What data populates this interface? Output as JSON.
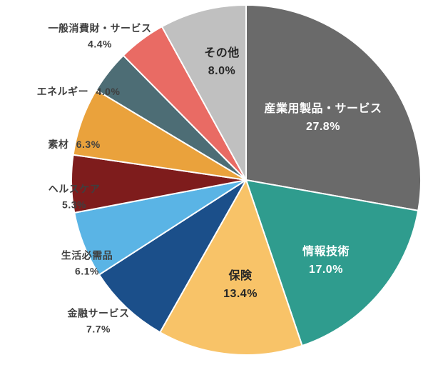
{
  "chart_data": {
    "type": "pie",
    "title": "",
    "unit": "%",
    "direction": "clockwise",
    "start_angle_deg": 0,
    "legend": "none",
    "slices": [
      {
        "id": "industrial-products-services",
        "label": "産業用製品・サービス",
        "value": 27.8,
        "pct": "27.8%",
        "color": "#6a6a6a",
        "label_placement": "inside"
      },
      {
        "id": "information-technology",
        "label": "情報技術",
        "value": 17.0,
        "pct": "17.0%",
        "color": "#2f9c8e",
        "label_placement": "inside"
      },
      {
        "id": "insurance",
        "label": "保険",
        "value": 13.4,
        "pct": "13.4%",
        "color": "#f8c368",
        "label_placement": "inside"
      },
      {
        "id": "financial-services",
        "label": "金融サービス",
        "value": 7.7,
        "pct": "7.7%",
        "color": "#1b4f8a",
        "label_placement": "outside"
      },
      {
        "id": "consumer-staples",
        "label": "生活必需品",
        "value": 6.1,
        "pct": "6.1%",
        "color": "#5ab4e5",
        "label_placement": "outside"
      },
      {
        "id": "healthcare",
        "label": "ヘルスケア",
        "value": 5.3,
        "pct": "5.3%",
        "color": "#7e1c1c",
        "label_placement": "outside"
      },
      {
        "id": "materials",
        "label": "素材",
        "value": 6.3,
        "pct": "6.3%",
        "color": "#eaa23c",
        "label_placement": "outside"
      },
      {
        "id": "energy",
        "label": "エネルギー",
        "value": 4.0,
        "pct": "4.0%",
        "color": "#4d6d75",
        "label_placement": "outside"
      },
      {
        "id": "consumer-discretionary",
        "label": "一般消費財・サービス",
        "value": 4.4,
        "pct": "4.4%",
        "color": "#e96b64",
        "label_placement": "outside"
      },
      {
        "id": "other",
        "label": "その他",
        "value": 8.0,
        "pct": "8.0%",
        "color": "#c0c0c0",
        "label_placement": "inside"
      }
    ]
  }
}
